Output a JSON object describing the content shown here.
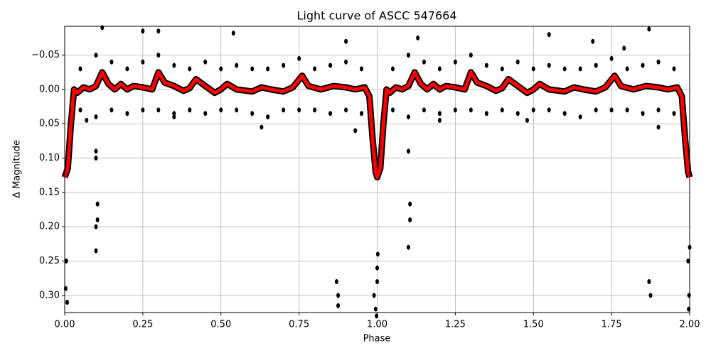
{
  "chart_data": {
    "type": "lightcurve",
    "title": "Light curve of ASCC 547664",
    "x_label": "Phase",
    "y_label": "Δ Magnitude",
    "xlim": [
      0,
      2
    ],
    "ylim": [
      -0.092,
      0.325
    ],
    "y_inverted": true,
    "grid": true,
    "xticks": [
      {
        "value": 0,
        "label": "0.00"
      },
      {
        "value": 0.25,
        "label": "0.25"
      },
      {
        "value": 0.5,
        "label": "0.50"
      },
      {
        "value": 0.75,
        "label": "0.75"
      },
      {
        "value": 1,
        "label": "1.00"
      },
      {
        "value": 1.25,
        "label": "1.25"
      },
      {
        "value": 1.5,
        "label": "1.50"
      },
      {
        "value": 1.75,
        "label": "1.75"
      },
      {
        "value": 2,
        "label": "2.00"
      }
    ],
    "yticks": [
      {
        "value": -0.05,
        "label": "−0.05"
      },
      {
        "value": 0,
        "label": "0.00"
      },
      {
        "value": 0.05,
        "label": "0.05"
      },
      {
        "value": 0.1,
        "label": "0.10"
      },
      {
        "value": 0.15,
        "label": "0.15"
      },
      {
        "value": 0.2,
        "label": "0.20"
      },
      {
        "value": 0.25,
        "label": "0.25"
      },
      {
        "value": 0.3,
        "label": "0.30"
      }
    ],
    "points": {
      "color": "#000000",
      "x": [
        0.05,
        0.05,
        0.1,
        0.1,
        0.15,
        0.15,
        0.2,
        0.2,
        0.25,
        0.25,
        0.3,
        0.3,
        0.35,
        0.35,
        0.4,
        0.4,
        0.45,
        0.45,
        0.5,
        0.5,
        0.55,
        0.55,
        0.6,
        0.6,
        0.65,
        0.65,
        0.7,
        0.7,
        0.75,
        0.75,
        0.8,
        0.8,
        0.85,
        0.85,
        0.9,
        0.9,
        0.95,
        0.95,
        1.05,
        1.05,
        1.1,
        1.1,
        1.15,
        1.15,
        1.2,
        1.2,
        1.25,
        1.25,
        1.3,
        1.3,
        1.35,
        1.35,
        1.4,
        1.4,
        1.45,
        1.45,
        1.5,
        1.5,
        1.55,
        1.55,
        1.6,
        1.6,
        1.65,
        1.65,
        1.7,
        1.7,
        1.75,
        1.75,
        1.8,
        1.8,
        1.85,
        1.85,
        1.9,
        1.9,
        1.95,
        1.95,
        0.005,
        0.003,
        0.008,
        0.1,
        0.1,
        0.1,
        0.105,
        0.105,
        0.1,
        0.87,
        0.875,
        0.875,
        0.99,
        0.995,
        1.0,
        1.0,
        1.002,
        0.998,
        1.1,
        1.1,
        1.105,
        1.105,
        1.87,
        1.875,
        1.995,
        1.998,
        2.0,
        1.997,
        0.12,
        0.3,
        0.9,
        1.13,
        1.79,
        1.87,
        0.25,
        0.54,
        1.55,
        1.69,
        0.63,
        0.93,
        1.48,
        0.07,
        1.2,
        1.9,
        0.35
      ],
      "values": [
        -0.03,
        0.03,
        -0.05,
        0.04,
        -0.04,
        0.03,
        -0.03,
        0.035,
        -0.04,
        0.03,
        -0.05,
        0.03,
        -0.035,
        0.035,
        -0.03,
        0.03,
        -0.04,
        0.035,
        -0.03,
        0.03,
        -0.035,
        0.03,
        -0.03,
        0.035,
        -0.03,
        0.04,
        -0.035,
        0.03,
        -0.045,
        0.03,
        -0.03,
        0.03,
        -0.035,
        0.035,
        -0.04,
        0.03,
        -0.03,
        0.035,
        -0.03,
        0.03,
        -0.05,
        0.04,
        -0.04,
        0.03,
        -0.03,
        0.035,
        -0.04,
        0.03,
        -0.05,
        0.03,
        -0.035,
        0.035,
        -0.03,
        0.03,
        -0.04,
        0.035,
        -0.03,
        0.03,
        -0.035,
        0.03,
        -0.03,
        0.035,
        -0.03,
        0.04,
        -0.035,
        0.03,
        -0.045,
        0.03,
        -0.03,
        0.03,
        -0.035,
        0.035,
        -0.04,
        0.03,
        -0.03,
        0.035,
        0.25,
        0.29,
        0.31,
        0.1,
        0.2,
        0.235,
        0.167,
        0.19,
        0.09,
        0.28,
        0.3,
        0.315,
        0.3,
        0.32,
        0.28,
        0.26,
        0.24,
        0.33,
        0.09,
        0.23,
        0.19,
        0.167,
        0.28,
        0.3,
        0.25,
        0.3,
        0.23,
        0.32,
        -0.09,
        -0.085,
        -0.07,
        -0.075,
        -0.06,
        -0.088,
        -0.085,
        -0.082,
        -0.08,
        -0.07,
        0.055,
        0.06,
        0.045,
        0.045,
        0.045,
        0.055,
        0.04
      ]
    },
    "curve": {
      "color": "#ff0000",
      "x": [
        0,
        0.01,
        0.02,
        0.03,
        0.04,
        0.06,
        0.08,
        0.1,
        0.12,
        0.14,
        0.16,
        0.18,
        0.2,
        0.22,
        0.25,
        0.28,
        0.3,
        0.32,
        0.35,
        0.38,
        0.4,
        0.42,
        0.45,
        0.48,
        0.5,
        0.52,
        0.55,
        0.6,
        0.63,
        0.66,
        0.7,
        0.73,
        0.76,
        0.78,
        0.82,
        0.86,
        0.9,
        0.93,
        0.96,
        0.975,
        0.985,
        0.995,
        1.0,
        1.01,
        1.02,
        1.03,
        1.04,
        1.06,
        1.08,
        1.1,
        1.12,
        1.14,
        1.16,
        1.18,
        1.2,
        1.22,
        1.25,
        1.28,
        1.3,
        1.32,
        1.35,
        1.38,
        1.4,
        1.42,
        1.45,
        1.48,
        1.5,
        1.52,
        1.55,
        1.6,
        1.63,
        1.66,
        1.7,
        1.73,
        1.76,
        1.78,
        1.82,
        1.86,
        1.9,
        1.93,
        1.96,
        1.975,
        1.985,
        1.995,
        2.0
      ],
      "values": [
        0.128,
        0.115,
        0.05,
        0.0,
        0.005,
        -0.003,
        0.0,
        -0.005,
        -0.025,
        -0.008,
        0.0,
        -0.008,
        0.0,
        -0.005,
        -0.003,
        0.0,
        -0.025,
        -0.01,
        -0.005,
        0.002,
        -0.002,
        -0.015,
        -0.005,
        0.005,
        0.0,
        -0.008,
        0.0,
        0.003,
        -0.003,
        0.0,
        0.003,
        -0.003,
        -0.02,
        -0.005,
        0.0,
        -0.005,
        -0.003,
        0.0,
        -0.003,
        0.01,
        0.07,
        0.12,
        0.128,
        0.115,
        0.05,
        0.0,
        0.005,
        -0.003,
        0.0,
        -0.005,
        -0.025,
        -0.008,
        0.0,
        -0.008,
        0.0,
        -0.005,
        -0.003,
        0.0,
        -0.025,
        -0.01,
        -0.005,
        0.002,
        -0.002,
        -0.015,
        -0.005,
        0.005,
        0.0,
        -0.008,
        0.0,
        0.003,
        -0.003,
        0.0,
        0.003,
        -0.003,
        -0.02,
        -0.005,
        0.0,
        -0.005,
        -0.003,
        0.0,
        -0.003,
        0.01,
        0.07,
        0.12,
        0.128
      ]
    }
  }
}
